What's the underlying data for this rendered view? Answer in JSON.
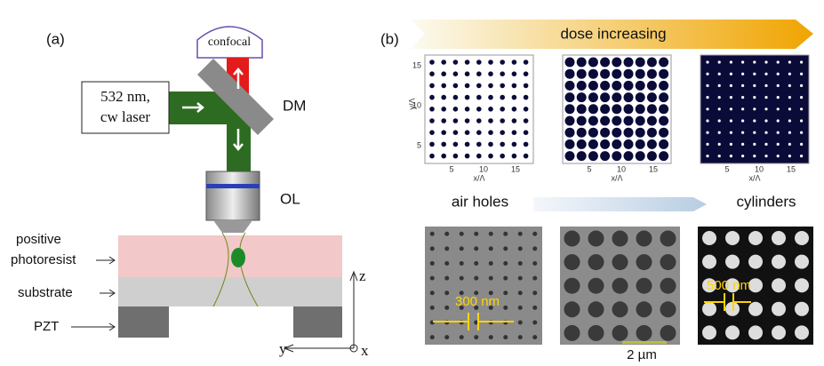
{
  "panel_a": {
    "label": "(a)",
    "detector": "confocal",
    "laser": [
      "532 nm,",
      "cw laser"
    ],
    "mirror": "DM",
    "objective": "OL",
    "layers": {
      "resist": [
        "positive",
        "photoresist"
      ],
      "substrate": "substrate",
      "stage": "PZT"
    },
    "axes": {
      "z": "z",
      "y": "y",
      "x": "x"
    }
  },
  "panel_b": {
    "label": "(b)",
    "arrow": "dose increasing",
    "plots": [
      {
        "yticks": [
          "15",
          "10",
          "5"
        ],
        "ylabel": "y/Λ",
        "xticks": [
          "5",
          "10",
          "15"
        ],
        "xlabel": "x/Λ"
      },
      {
        "xticks": [
          "5",
          "10",
          "15"
        ],
        "xlabel": "x/Λ"
      },
      {
        "xticks": [
          "5",
          "10",
          "15"
        ],
        "xlabel": "x/Λ"
      }
    ],
    "left_label": "air holes",
    "right_label": "cylinders",
    "sem_labels": [
      "300 nm",
      "2 µm",
      "500 nm"
    ]
  }
}
